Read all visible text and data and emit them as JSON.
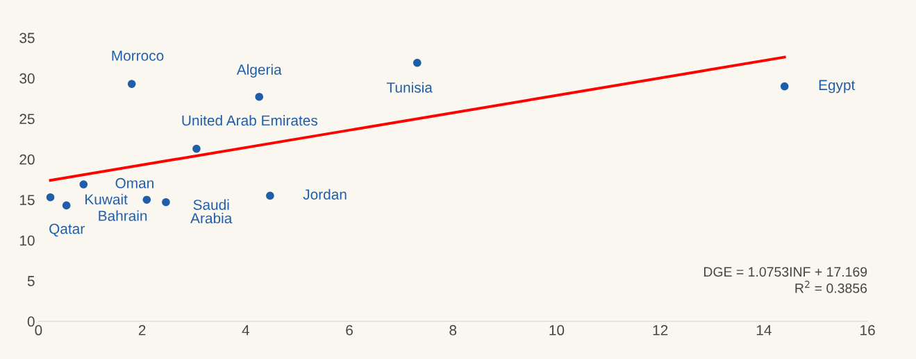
{
  "chart_data": {
    "type": "scatter",
    "x": [
      0.23,
      0.54,
      0.87,
      1.8,
      2.09,
      2.46,
      3.05,
      4.26,
      4.47,
      7.31,
      14.4
    ],
    "series": [
      {
        "color": "#1f5ea8",
        "marker": "circle",
        "values": [
          15.3,
          14.3,
          16.9,
          29.3,
          15.0,
          14.7,
          21.3,
          27.7,
          15.5,
          31.9,
          29.0
        ]
      },
      {
        "type": "line",
        "color": "#ff0000",
        "x": [
          0.23,
          14.4
        ],
        "values": [
          17.4,
          32.6
        ],
        "marker": "none"
      }
    ],
    "annotations": [
      {
        "text": "Qatar",
        "x": 0.23,
        "y": 15.3
      },
      {
        "text": "Kuwait",
        "x": 0.54,
        "y": 14.3
      },
      {
        "text": "Oman",
        "x": 0.87,
        "y": 16.9
      },
      {
        "text": "Morroco",
        "x": 1.8,
        "y": 29.3
      },
      {
        "text": "Bahrain",
        "x": 2.09,
        "y": 15.0
      },
      {
        "text": "Saudi\nArabia",
        "x": 2.46,
        "y": 14.7
      },
      {
        "text": "United Arab Emirates",
        "x": 3.05,
        "y": 21.3
      },
      {
        "text": "Algeria",
        "x": 4.26,
        "y": 27.7
      },
      {
        "text": "Jordan",
        "x": 4.47,
        "y": 15.5
      },
      {
        "text": "Tunisia",
        "x": 7.31,
        "y": 31.9
      },
      {
        "text": "Egypt",
        "x": 14.4,
        "y": 29.0
      },
      "DGE = 1.0753INF + 17.169\nR$^{2}$ = 0.3856"
    ],
    "xlim": [
      0,
      16
    ],
    "xticks": [
      0,
      2,
      4,
      6,
      8,
      10,
      12,
      14,
      16
    ],
    "ylim": [
      0,
      35
    ],
    "yticks": [
      0,
      5,
      10,
      15,
      20,
      25,
      30,
      35
    ],
    "grid": false
  }
}
